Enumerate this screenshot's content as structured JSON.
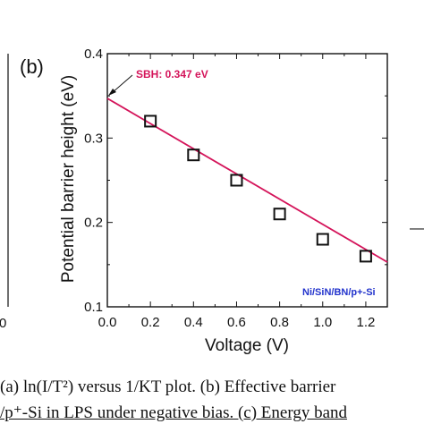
{
  "chart_data": {
    "type": "scatter",
    "panel_label": "(b)",
    "xlabel": "Voltage (V)",
    "ylabel": "Potential barrier height (eV)",
    "xlim": [
      0.0,
      1.3
    ],
    "ylim": [
      0.1,
      0.4
    ],
    "xticks": [
      "0.0",
      "0.2",
      "0.4",
      "0.6",
      "0.8",
      "1.0",
      "1.2"
    ],
    "yticks": [
      "0.1",
      "0.2",
      "0.3",
      "0.4"
    ],
    "series": [
      {
        "x": [
          0.2,
          0.4,
          0.6,
          0.8,
          1.0,
          1.2
        ],
        "y": [
          0.32,
          0.28,
          0.25,
          0.21,
          0.18,
          0.16
        ]
      }
    ],
    "fit_line": {
      "x": [
        0.0,
        1.3
      ],
      "y": [
        0.347,
        0.153
      ],
      "color": "#d4145a"
    },
    "annotation": "SBH: 0.347 eV",
    "sample_label": "Ni/SiN/BN/p+-Si",
    "marker_color": "#111111"
  },
  "left_panel": {
    "tick_fragment": "0"
  },
  "right_panel": {
    "fragment": "—"
  },
  "caption": {
    "line1": "(a) ln(I/T²) versus 1/KT plot. (b) Effective barrier",
    "line2": "/p⁺-Si in LPS under negative bias. (c) Energy band"
  }
}
